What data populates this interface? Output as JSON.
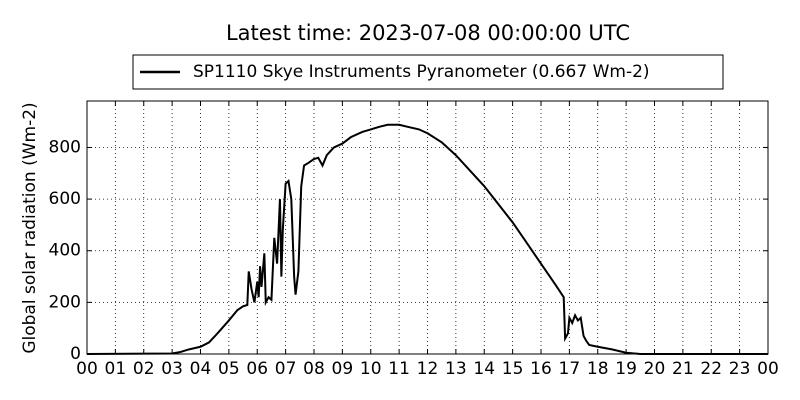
{
  "chart_data": {
    "type": "line",
    "title": "Latest time: 2023-07-08 00:00:00 UTC",
    "y_label": "Global solar radiation (Wm-2)",
    "x": [
      0,
      3.0,
      3.3,
      3.6,
      4.0,
      4.3,
      4.6,
      5.0,
      5.3,
      5.5,
      5.65,
      5.7,
      5.8,
      5.9,
      6.0,
      6.05,
      6.1,
      6.15,
      6.25,
      6.3,
      6.4,
      6.5,
      6.6,
      6.7,
      6.8,
      6.85,
      6.9,
      7.0,
      7.1,
      7.2,
      7.3,
      7.35,
      7.45,
      7.55,
      7.65,
      7.8,
      8.0,
      8.15,
      8.3,
      8.45,
      8.7,
      9.0,
      9.3,
      9.7,
      10.0,
      10.3,
      10.6,
      11.0,
      11.3,
      11.7,
      12.0,
      12.5,
      13.0,
      13.5,
      14.0,
      14.5,
      15.0,
      15.5,
      16.0,
      16.5,
      16.8,
      16.85,
      16.95,
      17.0,
      17.1,
      17.2,
      17.3,
      17.4,
      17.5,
      17.6,
      17.7,
      18.0,
      18.5,
      19.0,
      19.5,
      24
    ],
    "series": [
      {
        "name": "SP1110 Skye Instruments Pyranometer (0.667 Wm-2)",
        "color": "#000000",
        "values": [
          0,
          2,
          8,
          18,
          28,
          45,
          80,
          130,
          170,
          185,
          190,
          320,
          250,
          200,
          280,
          220,
          340,
          260,
          390,
          200,
          220,
          210,
          450,
          350,
          600,
          300,
          480,
          660,
          670,
          600,
          300,
          230,
          320,
          650,
          730,
          740,
          755,
          760,
          730,
          770,
          800,
          815,
          840,
          860,
          870,
          880,
          888,
          888,
          880,
          870,
          855,
          820,
          770,
          710,
          650,
          580,
          510,
          430,
          350,
          270,
          220,
          60,
          80,
          140,
          120,
          150,
          130,
          140,
          70,
          50,
          35,
          28,
          18,
          5,
          0,
          0
        ]
      }
    ],
    "xlim": [
      0,
      24
    ],
    "ylim": [
      0,
      980
    ],
    "xticks": [
      {
        "value": 0,
        "label": "00"
      },
      {
        "value": 1,
        "label": "01"
      },
      {
        "value": 2,
        "label": "02"
      },
      {
        "value": 3,
        "label": "03"
      },
      {
        "value": 4,
        "label": "04"
      },
      {
        "value": 5,
        "label": "05"
      },
      {
        "value": 6,
        "label": "06"
      },
      {
        "value": 7,
        "label": "07"
      },
      {
        "value": 8,
        "label": "08"
      },
      {
        "value": 9,
        "label": "09"
      },
      {
        "value": 10,
        "label": "10"
      },
      {
        "value": 11,
        "label": "11"
      },
      {
        "value": 12,
        "label": "12"
      },
      {
        "value": 13,
        "label": "13"
      },
      {
        "value": 14,
        "label": "14"
      },
      {
        "value": 15,
        "label": "15"
      },
      {
        "value": 16,
        "label": "16"
      },
      {
        "value": 17,
        "label": "17"
      },
      {
        "value": 18,
        "label": "18"
      },
      {
        "value": 19,
        "label": "19"
      },
      {
        "value": 20,
        "label": "20"
      },
      {
        "value": 21,
        "label": "21"
      },
      {
        "value": 22,
        "label": "22"
      },
      {
        "value": 23,
        "label": "23"
      },
      {
        "value": 24,
        "label": "00"
      }
    ],
    "yticks": [
      0,
      200,
      400,
      600,
      800
    ],
    "grid": true,
    "legend": "top"
  }
}
